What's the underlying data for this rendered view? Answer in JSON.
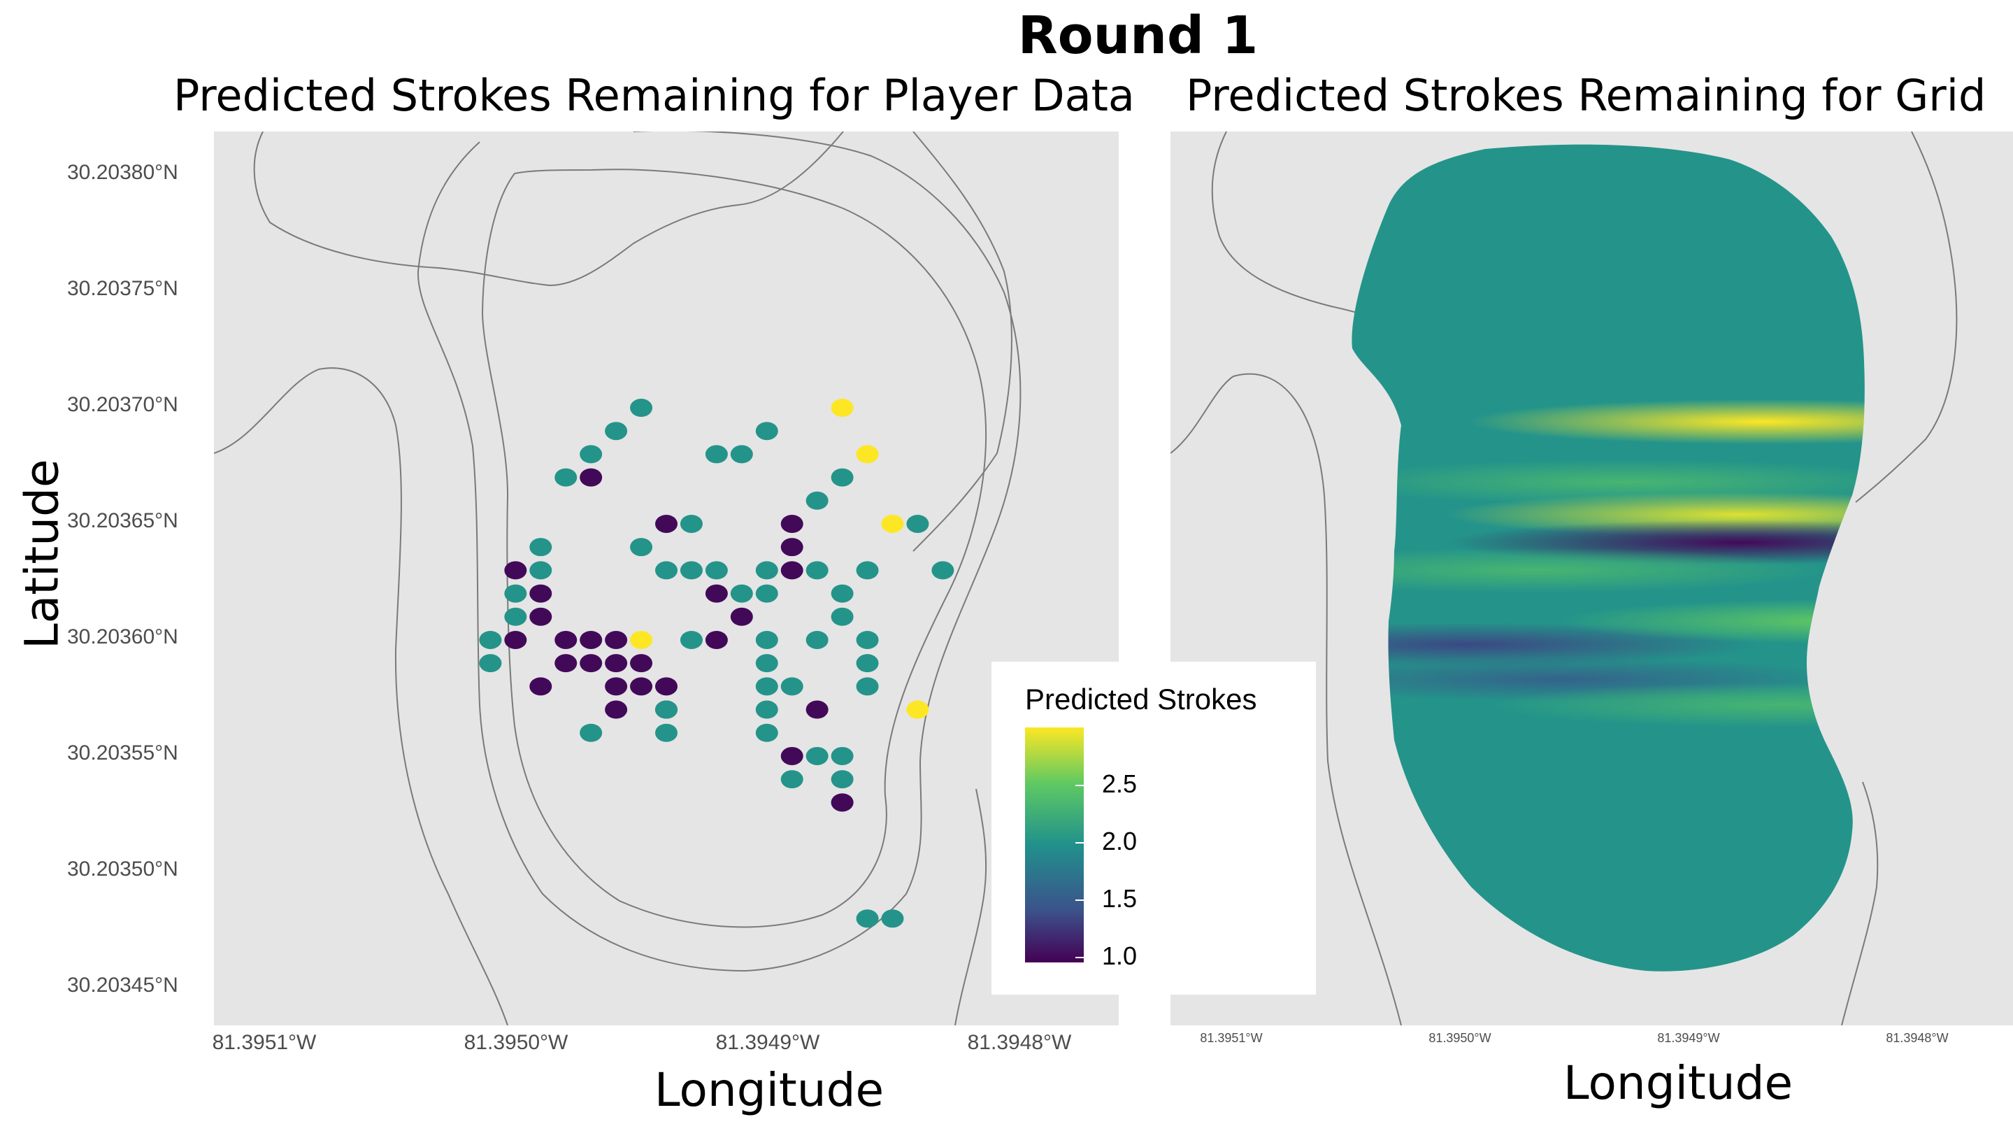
{
  "title": "Round 1",
  "chart_data": [
    {
      "type": "scatter",
      "title": "Predicted Strokes Remaining for Player Data",
      "xlabel": "Longitude",
      "ylabel": "Latitude",
      "xtick_labels": [
        "81.3951°W",
        "81.3950°W",
        "81.3949°W",
        "81.3948°W"
      ],
      "ytick_labels": [
        "30.20380°N",
        "30.20375°N",
        "30.20370°N",
        "30.20365°N",
        "30.20360°N",
        "30.20355°N",
        "30.20350°N",
        "30.20345°N"
      ],
      "x_ticks": [
        -81.3951,
        -81.395,
        -81.3949,
        -81.3948
      ],
      "y_ticks": [
        30.2038,
        30.20375,
        30.2037,
        30.20365,
        30.2036,
        30.20355,
        30.2035,
        30.20345
      ],
      "xlim": [
        -81.39513,
        -81.39477
      ],
      "ylim": [
        30.203434,
        30.203819
      ],
      "points": [
        {
          "lon": -81.39496,
          "lat": 30.2037,
          "strokes": 2.0
        },
        {
          "lon": -81.39497,
          "lat": 30.20369,
          "strokes": 2.0
        },
        {
          "lon": -81.39498,
          "lat": 30.20368,
          "strokes": 2.0
        },
        {
          "lon": -81.39498,
          "lat": 30.20367,
          "strokes": 1.0
        },
        {
          "lon": -81.39499,
          "lat": 30.20367,
          "strokes": 2.0
        },
        {
          "lon": -81.39493,
          "lat": 30.20368,
          "strokes": 2.0
        },
        {
          "lon": -81.39492,
          "lat": 30.20368,
          "strokes": 2.0
        },
        {
          "lon": -81.39491,
          "lat": 30.20369,
          "strokes": 2.0
        },
        {
          "lon": -81.39488,
          "lat": 30.2037,
          "strokes": 3.0
        },
        {
          "lon": -81.39487,
          "lat": 30.20368,
          "strokes": 3.0
        },
        {
          "lon": -81.39488,
          "lat": 30.20367,
          "strokes": 2.0
        },
        {
          "lon": -81.39489,
          "lat": 30.20366,
          "strokes": 2.0
        },
        {
          "lon": -81.39486,
          "lat": 30.20365,
          "strokes": 3.0
        },
        {
          "lon": -81.39485,
          "lat": 30.20365,
          "strokes": 2.0
        },
        {
          "lon": -81.39484,
          "lat": 30.20363,
          "strokes": 2.0
        },
        {
          "lon": -81.39494,
          "lat": 30.20365,
          "strokes": 2.0
        },
        {
          "lon": -81.39495,
          "lat": 30.20365,
          "strokes": 1.0
        },
        {
          "lon": -81.39496,
          "lat": 30.20364,
          "strokes": 2.0
        },
        {
          "lon": -81.39495,
          "lat": 30.20363,
          "strokes": 2.0
        },
        {
          "lon": -81.39494,
          "lat": 30.20363,
          "strokes": 2.0
        },
        {
          "lon": -81.39493,
          "lat": 30.20363,
          "strokes": 2.0
        },
        {
          "lon": -81.3949,
          "lat": 30.20365,
          "strokes": 1.0
        },
        {
          "lon": -81.3949,
          "lat": 30.20364,
          "strokes": 1.0
        },
        {
          "lon": -81.39491,
          "lat": 30.20363,
          "strokes": 2.0
        },
        {
          "lon": -81.3949,
          "lat": 30.20363,
          "strokes": 1.0
        },
        {
          "lon": -81.39491,
          "lat": 30.20362,
          "strokes": 2.0
        },
        {
          "lon": -81.39492,
          "lat": 30.20362,
          "strokes": 2.0
        },
        {
          "lon": -81.39489,
          "lat": 30.20363,
          "strokes": 2.0
        },
        {
          "lon": -81.39488,
          "lat": 30.20362,
          "strokes": 2.0
        },
        {
          "lon": -81.39487,
          "lat": 30.20363,
          "strokes": 2.0
        },
        {
          "lon": -81.39488,
          "lat": 30.20361,
          "strokes": 2.0
        },
        {
          "lon": -81.39487,
          "lat": 30.2036,
          "strokes": 2.0
        },
        {
          "lon": -81.39487,
          "lat": 30.20359,
          "strokes": 2.0
        },
        {
          "lon": -81.39489,
          "lat": 30.2036,
          "strokes": 2.0
        },
        {
          "lon": -81.39491,
          "lat": 30.2036,
          "strokes": 2.0
        },
        {
          "lon": -81.39493,
          "lat": 30.20362,
          "strokes": 1.0
        },
        {
          "lon": -81.39492,
          "lat": 30.20361,
          "strokes": 1.0
        },
        {
          "lon": -81.39493,
          "lat": 30.2036,
          "strokes": 1.0
        },
        {
          "lon": -81.39494,
          "lat": 30.2036,
          "strokes": 2.0
        },
        {
          "lon": -81.39491,
          "lat": 30.20359,
          "strokes": 2.0
        },
        {
          "lon": -81.3949,
          "lat": 30.20358,
          "strokes": 2.0
        },
        {
          "lon": -81.39491,
          "lat": 30.20358,
          "strokes": 2.0
        },
        {
          "lon": -81.39491,
          "lat": 30.20357,
          "strokes": 2.0
        },
        {
          "lon": -81.39489,
          "lat": 30.20357,
          "strokes": 1.0
        },
        {
          "lon": -81.39487,
          "lat": 30.20358,
          "strokes": 2.0
        },
        {
          "lon": -81.39485,
          "lat": 30.20357,
          "strokes": 3.0
        },
        {
          "lon": -81.39491,
          "lat": 30.20356,
          "strokes": 2.0
        },
        {
          "lon": -81.3949,
          "lat": 30.20355,
          "strokes": 1.0
        },
        {
          "lon": -81.39489,
          "lat": 30.20355,
          "strokes": 2.0
        },
        {
          "lon": -81.39488,
          "lat": 30.20355,
          "strokes": 2.0
        },
        {
          "lon": -81.3949,
          "lat": 30.20354,
          "strokes": 2.0
        },
        {
          "lon": -81.39488,
          "lat": 30.20354,
          "strokes": 2.0
        },
        {
          "lon": -81.39488,
          "lat": 30.20353,
          "strokes": 2.0
        },
        {
          "lon": -81.39488,
          "lat": 30.20353,
          "strokes": 1.0
        },
        {
          "lon": -81.39487,
          "lat": 30.20348,
          "strokes": 2.0
        },
        {
          "lon": -81.39486,
          "lat": 30.20348,
          "strokes": 2.0
        },
        {
          "lon": -81.39501,
          "lat": 30.20363,
          "strokes": 1.0
        },
        {
          "lon": -81.395,
          "lat": 30.20364,
          "strokes": 2.0
        },
        {
          "lon": -81.395,
          "lat": 30.20363,
          "strokes": 2.0
        },
        {
          "lon": -81.395,
          "lat": 30.20362,
          "strokes": 1.0
        },
        {
          "lon": -81.395,
          "lat": 30.20361,
          "strokes": 1.0
        },
        {
          "lon": -81.39501,
          "lat": 30.20362,
          "strokes": 2.0
        },
        {
          "lon": -81.39501,
          "lat": 30.20361,
          "strokes": 2.0
        },
        {
          "lon": -81.39502,
          "lat": 30.2036,
          "strokes": 2.0
        },
        {
          "lon": -81.39501,
          "lat": 30.2036,
          "strokes": 1.0
        },
        {
          "lon": -81.39502,
          "lat": 30.20359,
          "strokes": 2.0
        },
        {
          "lon": -81.395,
          "lat": 30.20358,
          "strokes": 1.0
        },
        {
          "lon": -81.39499,
          "lat": 30.2036,
          "strokes": 1.0
        },
        {
          "lon": -81.39498,
          "lat": 30.2036,
          "strokes": 1.0
        },
        {
          "lon": -81.39498,
          "lat": 30.20359,
          "strokes": 1.0
        },
        {
          "lon": -81.39497,
          "lat": 30.2036,
          "strokes": 1.0
        },
        {
          "lon": -81.39497,
          "lat": 30.20359,
          "strokes": 1.0
        },
        {
          "lon": -81.39496,
          "lat": 30.20359,
          "strokes": 1.0
        },
        {
          "lon": -81.39496,
          "lat": 30.2036,
          "strokes": 3.0
        },
        {
          "lon": -81.39499,
          "lat": 30.20359,
          "strokes": 1.0
        },
        {
          "lon": -81.39497,
          "lat": 30.20358,
          "strokes": 1.0
        },
        {
          "lon": -81.39496,
          "lat": 30.20358,
          "strokes": 1.0
        },
        {
          "lon": -81.39495,
          "lat": 30.20358,
          "strokes": 1.0
        },
        {
          "lon": -81.39495,
          "lat": 30.20357,
          "strokes": 1.0
        },
        {
          "lon": -81.39497,
          "lat": 30.20357,
          "strokes": 1.0
        },
        {
          "lon": -81.39495,
          "lat": 30.20357,
          "strokes": 2.0
        },
        {
          "lon": -81.39498,
          "lat": 30.20356,
          "strokes": 2.0
        },
        {
          "lon": -81.39495,
          "lat": 30.20356,
          "strokes": 2.0
        }
      ],
      "legend": {
        "title": "Predicted Strokes",
        "ticks": [
          "2.5",
          "2.0",
          "1.5",
          "1.0"
        ],
        "tick_values": [
          2.5,
          2.0,
          1.5,
          1.0
        ],
        "range": [
          0.95,
          3.0
        ]
      }
    },
    {
      "type": "heatmap",
      "title": "Predicted Strokes Remaining for Grid",
      "xlabel": "Longitude",
      "xtick_labels": [
        "81.3951°W",
        "81.3950°W",
        "81.3949°W",
        "81.3948°W"
      ],
      "x_ticks": [
        -81.3951,
        -81.395,
        -81.3949,
        -81.3948
      ],
      "xlim": [
        -81.39514,
        -81.39477
      ],
      "ylim": [
        30.203434,
        30.203819
      ],
      "base_value": 2.0,
      "bands": [
        {
          "lat": 30.203694,
          "lon_center": -81.39488,
          "value": 3.0,
          "note_free": true
        },
        {
          "lat": 30.203668,
          "lon_center": -81.39494,
          "value": 2.3
        },
        {
          "lat": 30.203654,
          "lon_center": -81.39489,
          "value": 2.9
        },
        {
          "lat": 30.203642,
          "lon_center": -81.39489,
          "value": 1.0
        },
        {
          "lat": 30.20363,
          "lon_center": -81.39498,
          "value": 2.3
        },
        {
          "lat": 30.203598,
          "lon_center": -81.39501,
          "value": 1.4
        },
        {
          "lat": 30.203583,
          "lon_center": -81.39497,
          "value": 1.6
        },
        {
          "lat": 30.203608,
          "lon_center": -81.39484,
          "value": 2.5
        },
        {
          "lat": 30.203572,
          "lon_center": -81.39487,
          "value": 2.3
        }
      ]
    }
  ]
}
